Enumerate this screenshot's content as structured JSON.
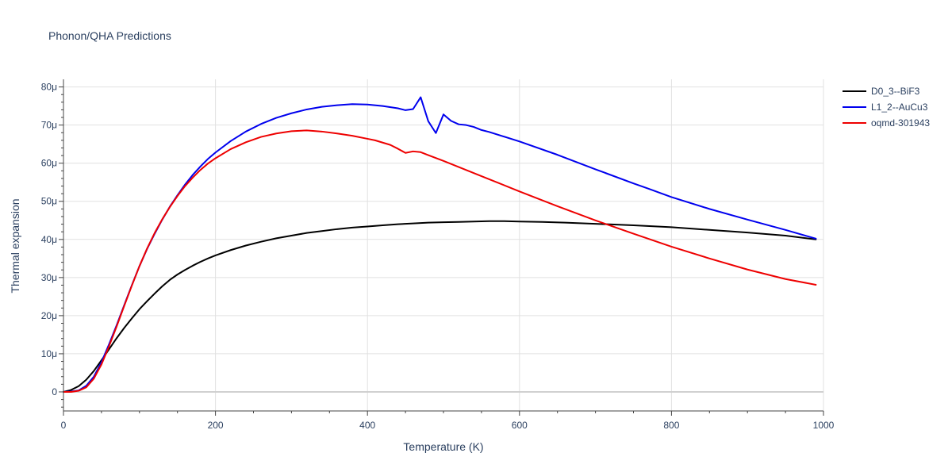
{
  "chart_data": {
    "type": "line",
    "title": "Phonon/QHA Predictions",
    "xlabel": "Temperature (K)",
    "ylabel": "Thermal expansion",
    "xlim": [
      0,
      1000
    ],
    "ylim": [
      -5e-06,
      8.2e-05
    ],
    "x_ticks": [
      {
        "value": 0,
        "label": "0"
      },
      {
        "value": 200,
        "label": "200"
      },
      {
        "value": 400,
        "label": "400"
      },
      {
        "value": 600,
        "label": "600"
      },
      {
        "value": 800,
        "label": "800"
      },
      {
        "value": 1000,
        "label": "1000"
      }
    ],
    "y_ticks": [
      {
        "value": 0,
        "label": "0"
      },
      {
        "value": 1e-05,
        "label": "10μ"
      },
      {
        "value": 2e-05,
        "label": "20μ"
      },
      {
        "value": 3e-05,
        "label": "30μ"
      },
      {
        "value": 4e-05,
        "label": "40μ"
      },
      {
        "value": 5e-05,
        "label": "50μ"
      },
      {
        "value": 6e-05,
        "label": "60μ"
      },
      {
        "value": 7e-05,
        "label": "70μ"
      },
      {
        "value": 8e-05,
        "label": "80μ"
      }
    ],
    "grid": true,
    "legend_position": "top-right",
    "series": [
      {
        "name": "D0_3--BiF3",
        "color": "#000000",
        "x": [
          0,
          10,
          20,
          30,
          40,
          50,
          60,
          70,
          80,
          90,
          100,
          110,
          120,
          130,
          140,
          150,
          160,
          170,
          180,
          190,
          200,
          220,
          240,
          260,
          280,
          300,
          320,
          340,
          360,
          380,
          400,
          420,
          440,
          460,
          480,
          500,
          520,
          540,
          560,
          580,
          600,
          630,
          660,
          700,
          750,
          800,
          850,
          900,
          950,
          990
        ],
        "y": [
          0,
          5e-07,
          1.5e-06,
          3.2e-06,
          5.5e-06,
          8.3e-06,
          1.12e-05,
          1.41e-05,
          1.68e-05,
          1.93e-05,
          2.17e-05,
          2.38e-05,
          2.58e-05,
          2.77e-05,
          2.94e-05,
          3.08e-05,
          3.2e-05,
          3.31e-05,
          3.41e-05,
          3.5e-05,
          3.58e-05,
          3.72e-05,
          3.84e-05,
          3.94e-05,
          4.03e-05,
          4.1e-05,
          4.17e-05,
          4.22e-05,
          4.27e-05,
          4.31e-05,
          4.34e-05,
          4.37e-05,
          4.4e-05,
          4.42e-05,
          4.44e-05,
          4.45e-05,
          4.46e-05,
          4.47e-05,
          4.48e-05,
          4.48e-05,
          4.47e-05,
          4.46e-05,
          4.44e-05,
          4.41e-05,
          4.37e-05,
          4.32e-05,
          4.25e-05,
          4.18e-05,
          4.1e-05,
          4e-05
        ]
      },
      {
        "name": "L1_2--AuCu3",
        "color": "#0000ee",
        "x": [
          0,
          10,
          20,
          30,
          40,
          50,
          60,
          70,
          80,
          90,
          100,
          110,
          120,
          130,
          140,
          150,
          160,
          170,
          180,
          190,
          200,
          220,
          240,
          260,
          280,
          300,
          320,
          340,
          360,
          380,
          400,
          420,
          440,
          450,
          460,
          470,
          480,
          490,
          500,
          510,
          520,
          530,
          540,
          550,
          560,
          600,
          650,
          700,
          750,
          770,
          800,
          850,
          900,
          950,
          990
        ],
        "y": [
          0,
          1e-07,
          4e-07,
          1.6e-06,
          4e-06,
          7.8e-06,
          1.25e-05,
          1.75e-05,
          2.28e-05,
          2.8e-05,
          3.3e-05,
          3.75e-05,
          4.15e-05,
          4.52e-05,
          4.86e-05,
          5.16e-05,
          5.44e-05,
          5.69e-05,
          5.91e-05,
          6.11e-05,
          6.28e-05,
          6.58e-05,
          6.83e-05,
          7.03e-05,
          7.19e-05,
          7.31e-05,
          7.41e-05,
          7.48e-05,
          7.52e-05,
          7.55e-05,
          7.54e-05,
          7.5e-05,
          7.44e-05,
          7.39e-05,
          7.42e-05,
          7.73e-05,
          7.1e-05,
          6.79e-05,
          7.28e-05,
          7.11e-05,
          7.02e-05,
          7e-05,
          6.95e-05,
          6.87e-05,
          6.82e-05,
          6.57e-05,
          6.22e-05,
          5.84e-05,
          5.47e-05,
          5.33e-05,
          5.11e-05,
          4.8e-05,
          4.52e-05,
          4.25e-05,
          4.02e-05
        ]
      },
      {
        "name": "oqmd-301943",
        "color": "#ee0000",
        "x": [
          0,
          10,
          20,
          30,
          40,
          50,
          60,
          70,
          80,
          90,
          100,
          110,
          120,
          130,
          140,
          150,
          160,
          170,
          180,
          190,
          200,
          220,
          240,
          260,
          280,
          300,
          320,
          340,
          360,
          380,
          400,
          410,
          420,
          430,
          440,
          450,
          460,
          470,
          480,
          500,
          550,
          600,
          650,
          700,
          750,
          800,
          850,
          900,
          950,
          990
        ],
        "y": [
          0,
          0.0,
          3e-07,
          1.2e-06,
          3.5e-06,
          7.2e-06,
          1.2e-05,
          1.72e-05,
          2.26e-05,
          2.79e-05,
          3.3e-05,
          3.76e-05,
          4.17e-05,
          4.53e-05,
          4.85e-05,
          5.14e-05,
          5.4e-05,
          5.62e-05,
          5.82e-05,
          5.99e-05,
          6.13e-05,
          6.37e-05,
          6.55e-05,
          6.69e-05,
          6.78e-05,
          6.84e-05,
          6.86e-05,
          6.83e-05,
          6.78e-05,
          6.72e-05,
          6.64e-05,
          6.6e-05,
          6.54e-05,
          6.48e-05,
          6.38e-05,
          6.27e-05,
          6.31e-05,
          6.29e-05,
          6.21e-05,
          6.06e-05,
          5.66e-05,
          5.26e-05,
          4.87e-05,
          4.5e-05,
          4.15e-05,
          3.81e-05,
          3.5e-05,
          3.21e-05,
          2.96e-05,
          2.81e-05
        ]
      }
    ]
  }
}
